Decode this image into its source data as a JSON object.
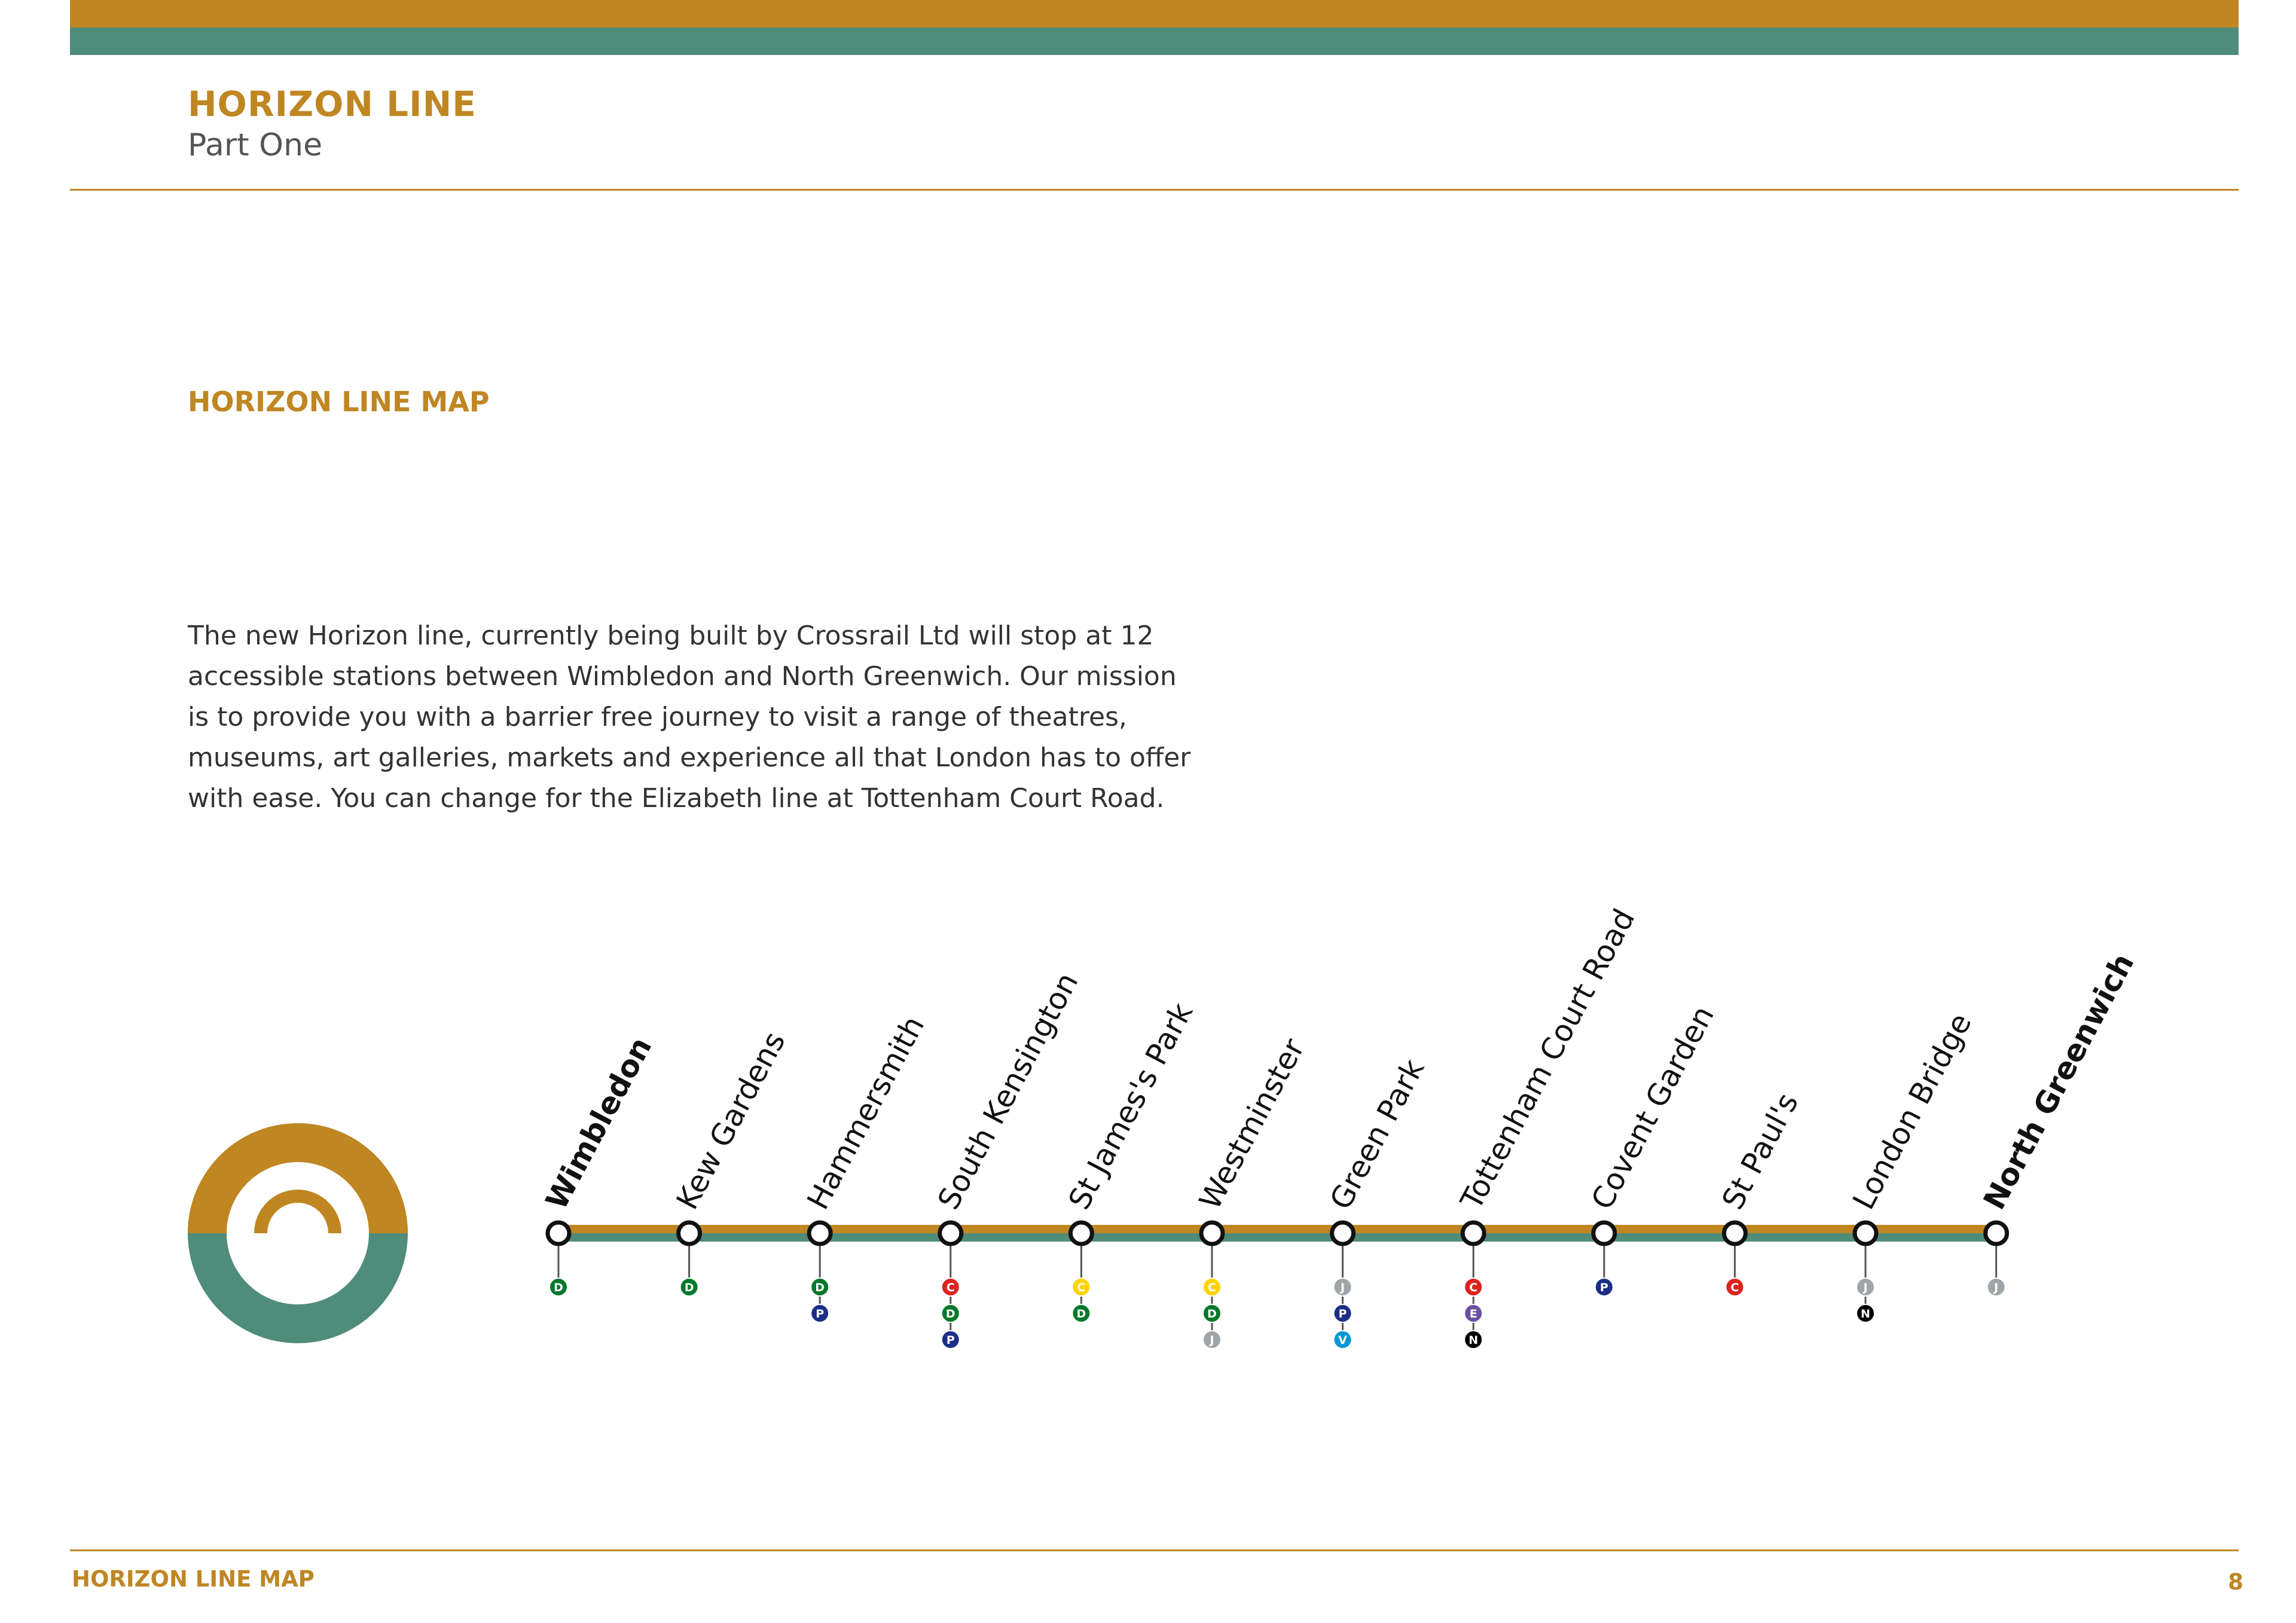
{
  "header": {
    "title": "HORIZON LINE",
    "subtitle": "Part One"
  },
  "section": {
    "heading": "HORIZON LINE MAP"
  },
  "intro": {
    "text": "The new Horizon line, currently being built by Crossrail Ltd will stop at 12 accessible stations between Wimbledon and North Greenwich. Our mission is to provide you with a barrier free journey to visit a range of theatres, museums, art galleries, markets and experience all that London has to offer with ease. You can change for the Elizabeth line at Tottenham Court Road."
  },
  "logo": {
    "icon": "horizon-line-roundel-icon",
    "colors": {
      "top": "#bf8622",
      "bottom": "#4f8c79"
    }
  },
  "map": {
    "line_colors": {
      "top": "#bf8622",
      "bottom": "#4f8c79"
    },
    "line_colors_available": {
      "C": "#dc241f",
      "D": "#00782a",
      "P": "#1c2e85",
      "J": "#a0a5a9",
      "E": "#6950a1",
      "N": "#000000",
      "V": "#0098d4",
      "Cy": "#ffd300"
    },
    "stations": [
      {
        "name": "Wimbledon",
        "terminus": true,
        "interchanges": [
          "D"
        ]
      },
      {
        "name": "Kew Gardens",
        "terminus": false,
        "interchanges": [
          "D"
        ]
      },
      {
        "name": "Hammersmith",
        "terminus": false,
        "interchanges": [
          "D",
          "P"
        ]
      },
      {
        "name": "South Kensington",
        "terminus": false,
        "interchanges": [
          "C",
          "D",
          "P"
        ]
      },
      {
        "name": "St James's Park",
        "terminus": false,
        "interchanges": [
          "Cy",
          "D"
        ]
      },
      {
        "name": "Westminster",
        "terminus": false,
        "interchanges": [
          "Cy",
          "D",
          "J"
        ]
      },
      {
        "name": "Green Park",
        "terminus": false,
        "interchanges": [
          "J",
          "P",
          "V"
        ]
      },
      {
        "name": "Tottenham Court Road",
        "terminus": false,
        "interchanges": [
          "C",
          "E",
          "N"
        ]
      },
      {
        "name": "Covent Garden",
        "terminus": false,
        "interchanges": [
          "P"
        ]
      },
      {
        "name": "St Paul's",
        "terminus": false,
        "interchanges": [
          "C"
        ]
      },
      {
        "name": "London Bridge",
        "terminus": false,
        "interchanges": [
          "J",
          "N"
        ]
      },
      {
        "name": "North Greenwich",
        "terminus": true,
        "interchanges": [
          "J"
        ]
      }
    ]
  },
  "footer": {
    "title": "HORIZON LINE MAP",
    "page": "8"
  }
}
